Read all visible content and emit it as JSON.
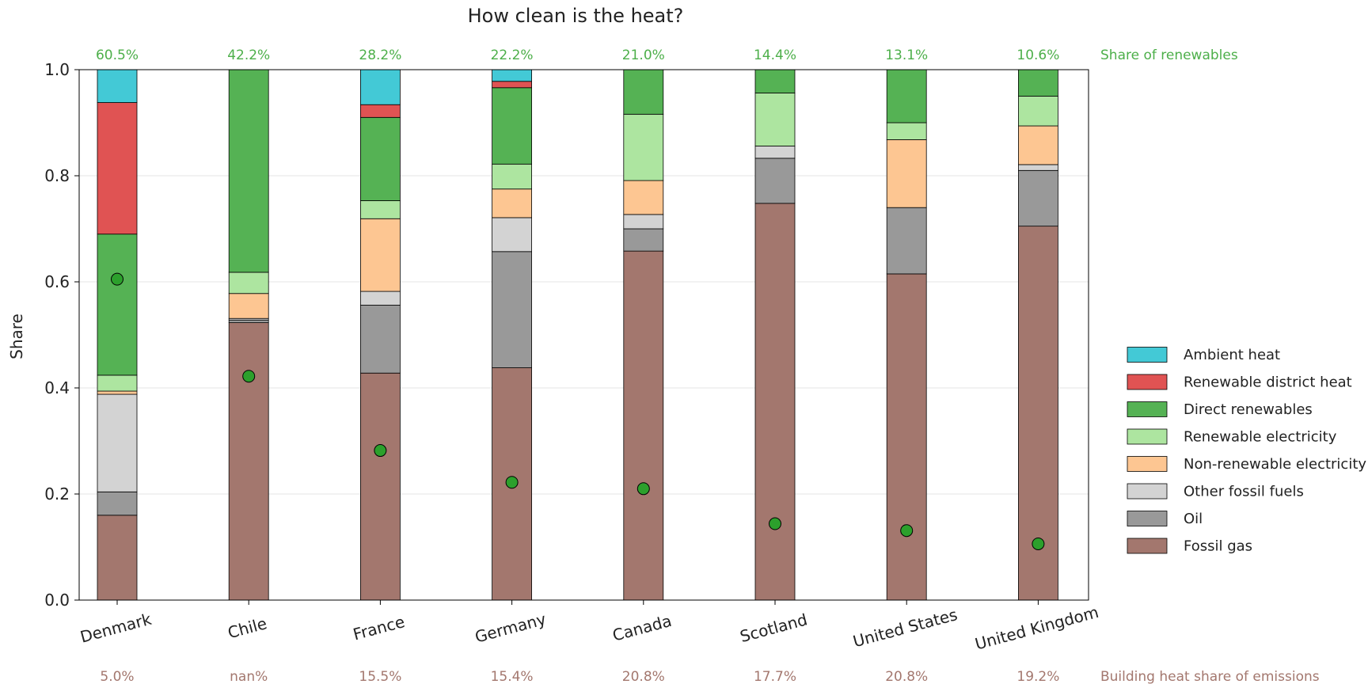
{
  "chart_data": {
    "type": "bar",
    "stacked": true,
    "title": "How clean is the heat?",
    "xlabel": "",
    "ylabel": "Share",
    "ylim": [
      0,
      1
    ],
    "yticks": [
      "0.0",
      "0.2",
      "0.4",
      "0.6",
      "0.8",
      "1.0"
    ],
    "grid": "horizontal",
    "legend_position": "right",
    "categories": [
      "Denmark",
      "Chile",
      "France",
      "Germany",
      "Canada",
      "Scotland",
      "United States",
      "United Kingdom"
    ],
    "series": [
      {
        "name": "Fossil gas",
        "color": "#a3776e",
        "values": [
          0.16,
          0.523,
          0.428,
          0.438,
          0.658,
          0.748,
          0.615,
          0.705
        ]
      },
      {
        "name": "Oil",
        "color": "#999999",
        "values": [
          0.044,
          0.005,
          0.128,
          0.219,
          0.042,
          0.085,
          0.125,
          0.105
        ]
      },
      {
        "name": "Other fossil fuels",
        "color": "#d3d3d3",
        "values": [
          0.184,
          0.003,
          0.026,
          0.064,
          0.027,
          0.023,
          0.0,
          0.011
        ]
      },
      {
        "name": "Non-renewable electricity",
        "color": "#fdc692",
        "values": [
          0.006,
          0.047,
          0.137,
          0.054,
          0.064,
          0.0,
          0.128,
          0.073
        ]
      },
      {
        "name": "Renewable electricity",
        "color": "#ade5a0",
        "values": [
          0.03,
          0.04,
          0.034,
          0.047,
          0.125,
          0.1,
          0.032,
          0.056
        ]
      },
      {
        "name": "Direct renewables",
        "color": "#55b254",
        "values": [
          0.266,
          0.382,
          0.157,
          0.144,
          0.084,
          0.044,
          0.1,
          0.05
        ]
      },
      {
        "name": "Renewable district heat",
        "color": "#e05353",
        "values": [
          0.248,
          0.0,
          0.024,
          0.012,
          0.0,
          0.0,
          0.0,
          0.0
        ]
      },
      {
        "name": "Ambient heat",
        "color": "#43c9d6",
        "values": [
          0.062,
          0.0,
          0.066,
          0.022,
          0.0,
          0.0,
          0.0,
          0.0
        ]
      }
    ],
    "markers": {
      "color": "#2ca02c",
      "values": [
        0.605,
        0.422,
        0.282,
        0.222,
        0.21,
        0.144,
        0.131,
        0.106
      ]
    },
    "top_labels": {
      "title": "Share of renewables",
      "color": "#4daf4a",
      "values": [
        "60.5%",
        "42.2%",
        "28.2%",
        "22.2%",
        "21.0%",
        "14.4%",
        "13.1%",
        "10.6%"
      ]
    },
    "bottom_labels": {
      "title": "Building heat share of emissions",
      "color": "#a3776e",
      "values": [
        "5.0%",
        "nan%",
        "15.5%",
        "15.4%",
        "20.8%",
        "17.7%",
        "20.8%",
        "19.2%"
      ]
    }
  }
}
